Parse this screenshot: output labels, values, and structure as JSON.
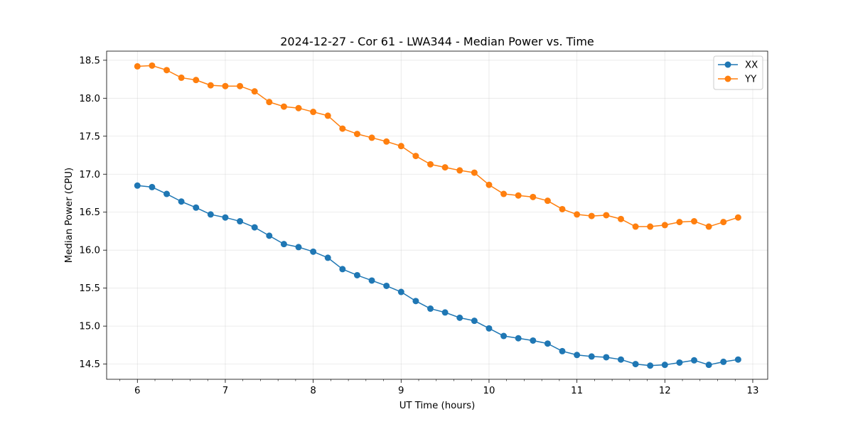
{
  "chart_data": {
    "type": "line",
    "title": "2024-12-27 - Cor 61 - LWA344 - Median Power vs. Time",
    "xlabel": "UT Time (hours)",
    "ylabel": "Median Power (CPU)",
    "xlim": [
      5.65,
      13.17
    ],
    "ylim": [
      14.3,
      18.62
    ],
    "xticks": [
      6,
      7,
      8,
      9,
      10,
      11,
      12,
      13
    ],
    "xtick_labels": [
      "6",
      "7",
      "8",
      "9",
      "10",
      "11",
      "12",
      "13"
    ],
    "yticks": [
      14.5,
      15.0,
      15.5,
      16.0,
      16.5,
      17.0,
      17.5,
      18.0,
      18.5
    ],
    "ytick_labels": [
      "14.5",
      "15.0",
      "15.5",
      "16.0",
      "16.5",
      "17.0",
      "17.5",
      "18.0",
      "18.5"
    ],
    "grid": true,
    "legend_position": "top-right",
    "x": [
      6.0,
      6.1667,
      6.3333,
      6.5,
      6.6667,
      6.8333,
      7.0,
      7.1667,
      7.3333,
      7.5,
      7.6667,
      7.8333,
      8.0,
      8.1667,
      8.3333,
      8.5,
      8.6667,
      8.8333,
      9.0,
      9.1667,
      9.3333,
      9.5,
      9.6667,
      9.8333,
      10.0,
      10.1667,
      10.3333,
      10.5,
      10.6667,
      10.8333,
      11.0,
      11.1667,
      11.3333,
      11.5,
      11.6667,
      11.8333,
      12.0,
      12.1667,
      12.3333,
      12.5,
      12.6667,
      12.8333
    ],
    "series": [
      {
        "name": "XX",
        "color": "#1f77b4",
        "values": [
          16.85,
          16.83,
          16.74,
          16.64,
          16.56,
          16.47,
          16.43,
          16.38,
          16.3,
          16.19,
          16.08,
          16.04,
          15.98,
          15.9,
          15.75,
          15.67,
          15.6,
          15.53,
          15.45,
          15.33,
          15.23,
          15.18,
          15.11,
          15.07,
          14.97,
          14.87,
          14.84,
          14.81,
          14.77,
          14.67,
          14.62,
          14.6,
          14.59,
          14.56,
          14.5,
          14.48,
          14.49,
          14.52,
          14.55,
          14.49,
          14.53,
          14.56
        ]
      },
      {
        "name": "YY",
        "color": "#ff7f0e",
        "values": [
          18.42,
          18.43,
          18.37,
          18.27,
          18.24,
          18.17,
          18.16,
          18.16,
          18.09,
          17.95,
          17.89,
          17.87,
          17.82,
          17.77,
          17.6,
          17.53,
          17.48,
          17.43,
          17.37,
          17.24,
          17.13,
          17.09,
          17.05,
          17.02,
          16.86,
          16.74,
          16.72,
          16.7,
          16.65,
          16.54,
          16.47,
          16.45,
          16.46,
          16.41,
          16.31,
          16.31,
          16.33,
          16.37,
          16.38,
          16.31,
          16.37,
          16.43
        ]
      }
    ]
  }
}
